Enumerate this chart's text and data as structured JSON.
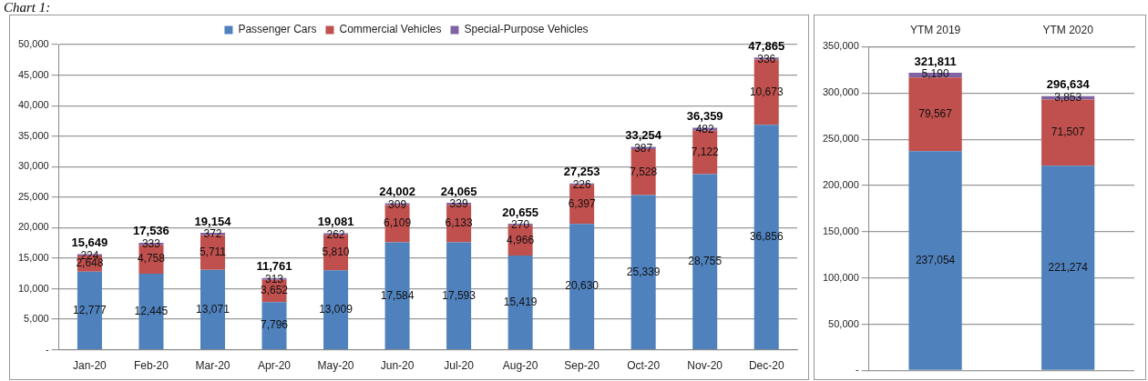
{
  "chart_data": [
    {
      "type": "bar",
      "annotations": [
        "Chart 1:"
      ],
      "stacked": true,
      "legend": "top",
      "grid": "y",
      "categories": [
        "Jan-20",
        "Feb-20",
        "Mar-20",
        "Apr-20",
        "May-20",
        "Jun-20",
        "Jul-20",
        "Aug-20",
        "Sep-20",
        "Oct-20",
        "Nov-20",
        "Dec-20"
      ],
      "series": [
        {
          "name": "Passenger Cars",
          "color": "#4f81bd",
          "values": [
            12777,
            12445,
            13071,
            7796,
            13009,
            17584,
            17593,
            15419,
            20630,
            25339,
            28755,
            36856
          ],
          "value_labels": [
            "12,777",
            "12,445",
            "13,071",
            "7,796",
            "13,009",
            "17,584",
            "17,593",
            "15,419",
            "20,630",
            "25,339",
            "28,755",
            "36,856"
          ]
        },
        {
          "name": "Commercial Vehicles",
          "color": "#c0504d",
          "values": [
            2648,
            4758,
            5711,
            3652,
            5810,
            6109,
            6133,
            4966,
            6397,
            7528,
            7122,
            10673
          ],
          "value_labels": [
            "2,648",
            "4,758",
            "5,711",
            "3,652",
            "5,810",
            "6,109",
            "6,133",
            "4,966",
            "6,397",
            "7,528",
            "7,122",
            "10,673"
          ]
        },
        {
          "name": "Special-Purpose Vehicles",
          "color": "#8064a2",
          "values": [
            224,
            333,
            372,
            313,
            262,
            309,
            339,
            270,
            226,
            387,
            482,
            336
          ],
          "value_labels": [
            "224",
            "333",
            "372",
            "313",
            "262",
            "309",
            "339",
            "270",
            "226",
            "387",
            "482",
            "336"
          ]
        }
      ],
      "totals": [
        "15,649",
        "17,536",
        "19,154",
        "11,761",
        "19,081",
        "24,002",
        "24,065",
        "20,655",
        "27,253",
        "33,254",
        "36,359",
        "47,865"
      ],
      "ylim": [
        0,
        50000
      ],
      "yticks": [
        {
          "value": 0,
          "label": "-"
        },
        {
          "value": 5000,
          "label": "5,000"
        },
        {
          "value": 10000,
          "label": "10,000"
        },
        {
          "value": 15000,
          "label": "15,000"
        },
        {
          "value": 20000,
          "label": "20,000"
        },
        {
          "value": 25000,
          "label": "25,000"
        },
        {
          "value": 30000,
          "label": "30,000"
        },
        {
          "value": 35000,
          "label": "35,000"
        },
        {
          "value": 40000,
          "label": "40,000"
        },
        {
          "value": 45000,
          "label": "45,000"
        },
        {
          "value": 50000,
          "label": "50,000"
        }
      ]
    },
    {
      "type": "bar",
      "stacked": true,
      "grid": "y",
      "categories": [
        "YTM 2019",
        "YTM 2020"
      ],
      "series": [
        {
          "color": "#4f81bd",
          "values": [
            237054,
            221274
          ],
          "value_labels": [
            "237,054",
            "221,274"
          ]
        },
        {
          "color": "#c0504d",
          "values": [
            79567,
            71507
          ],
          "value_labels": [
            "79,567",
            "71,507"
          ]
        },
        {
          "color": "#8064a2",
          "values": [
            5190,
            3853
          ],
          "value_labels": [
            "5,190",
            "3,853"
          ]
        }
      ],
      "totals": [
        "321,811",
        "296,634"
      ],
      "ylim": [
        0,
        350000
      ],
      "yticks": [
        {
          "value": 0,
          "label": "-"
        },
        {
          "value": 50000,
          "label": "50,000"
        },
        {
          "value": 100000,
          "label": "100,000"
        },
        {
          "value": 150000,
          "label": "150,000"
        },
        {
          "value": 200000,
          "label": "200,000"
        },
        {
          "value": 250000,
          "label": "250,000"
        },
        {
          "value": 300000,
          "label": "300,000"
        },
        {
          "value": 350000,
          "label": "350,000"
        }
      ]
    }
  ]
}
